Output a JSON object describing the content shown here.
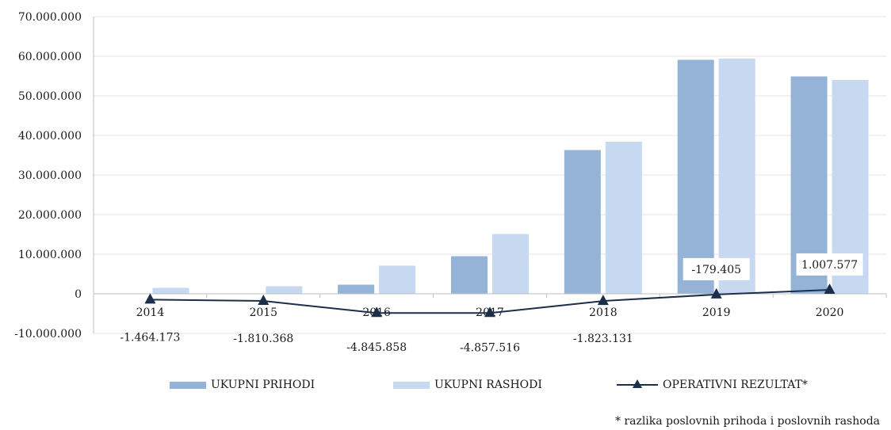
{
  "chart_data": {
    "type": "bar",
    "categories": [
      "2014",
      "2015",
      "2016",
      "2017",
      "2018",
      "2019",
      "2020"
    ],
    "series": [
      {
        "name": "UKUPNI PRIHODI",
        "type": "bar",
        "color": "#95b3d7",
        "values": [
          0,
          0,
          2300000,
          9500000,
          36300000,
          59100000,
          54900000
        ]
      },
      {
        "name": "UKUPNI RASHODI",
        "type": "bar",
        "color": "#c6d9f0",
        "values": [
          1500000,
          1900000,
          7100000,
          15100000,
          38400000,
          59400000,
          54000000
        ]
      },
      {
        "name": "OPERATIVNI REZULTAT*",
        "type": "line",
        "color": "#1c2f4a",
        "values": [
          -1464173,
          -1810368,
          -4845858,
          -4857516,
          -1823131,
          -179405,
          1007577
        ],
        "labels": [
          "-1.464.173",
          "-1.810.368",
          "-4.845.858",
          "-4.857.516",
          "-1.823.131",
          "-179.405",
          "1.007.577"
        ]
      }
    ],
    "ylim": [
      -10000000,
      70000000
    ],
    "yticks": [
      70000000,
      60000000,
      50000000,
      40000000,
      30000000,
      20000000,
      10000000,
      0,
      -10000000
    ],
    "ytick_labels": [
      "70.000.000",
      "60.000.000",
      "50.000.000",
      "40.000.000",
      "30.000.000",
      "20.000.000",
      "10.000.000",
      "0",
      "-10.000.000"
    ],
    "grid": true,
    "legend_position": "bottom"
  },
  "legend": {
    "prihodi": "UKUPNI PRIHODI",
    "rashodi": "UKUPNI RASHODI",
    "rezultat": "OPERATIVNI REZULTAT*"
  },
  "footnote": "* razlika poslovnih prihoda i poslovnih rashoda"
}
